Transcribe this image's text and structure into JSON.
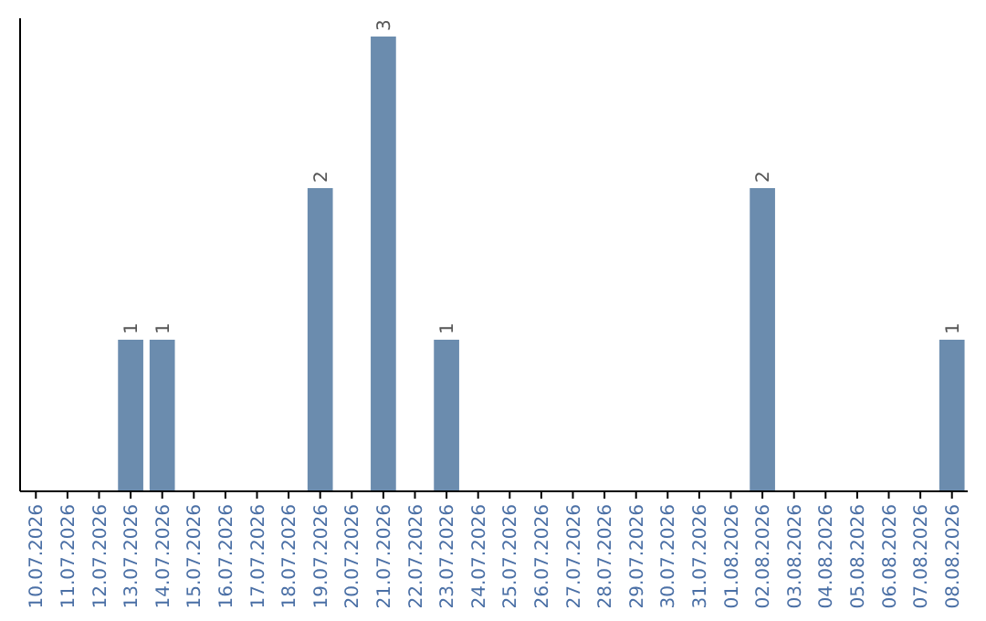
{
  "chart_data": {
    "type": "bar",
    "categories": [
      "10.07.2026",
      "11.07.2026",
      "12.07.2026",
      "13.07.2026",
      "14.07.2026",
      "15.07.2026",
      "16.07.2026",
      "17.07.2026",
      "18.07.2026",
      "19.07.2026",
      "20.07.2026",
      "21.07.2026",
      "22.07.2026",
      "23.07.2026",
      "24.07.2026",
      "25.07.2026",
      "26.07.2026",
      "27.07.2026",
      "28.07.2026",
      "29.07.2026",
      "30.07.2026",
      "31.07.2026",
      "01.08.2026",
      "02.08.2026",
      "03.08.2026",
      "04.08.2026",
      "05.08.2026",
      "06.08.2026",
      "07.08.2026",
      "08.08.2026"
    ],
    "values": [
      0,
      0,
      0,
      1,
      1,
      0,
      0,
      0,
      0,
      2,
      0,
      3,
      0,
      1,
      0,
      0,
      0,
      0,
      0,
      0,
      0,
      0,
      0,
      2,
      0,
      0,
      0,
      0,
      0,
      1
    ],
    "value_labels": [
      null,
      null,
      null,
      "1",
      "1",
      null,
      null,
      null,
      null,
      "2",
      null,
      "3",
      null,
      "1",
      null,
      null,
      null,
      null,
      null,
      null,
      null,
      null,
      null,
      "2",
      null,
      null,
      null,
      null,
      null,
      "1"
    ],
    "color": "#6b8cae",
    "grid": false,
    "tick_labels": "x"
  }
}
